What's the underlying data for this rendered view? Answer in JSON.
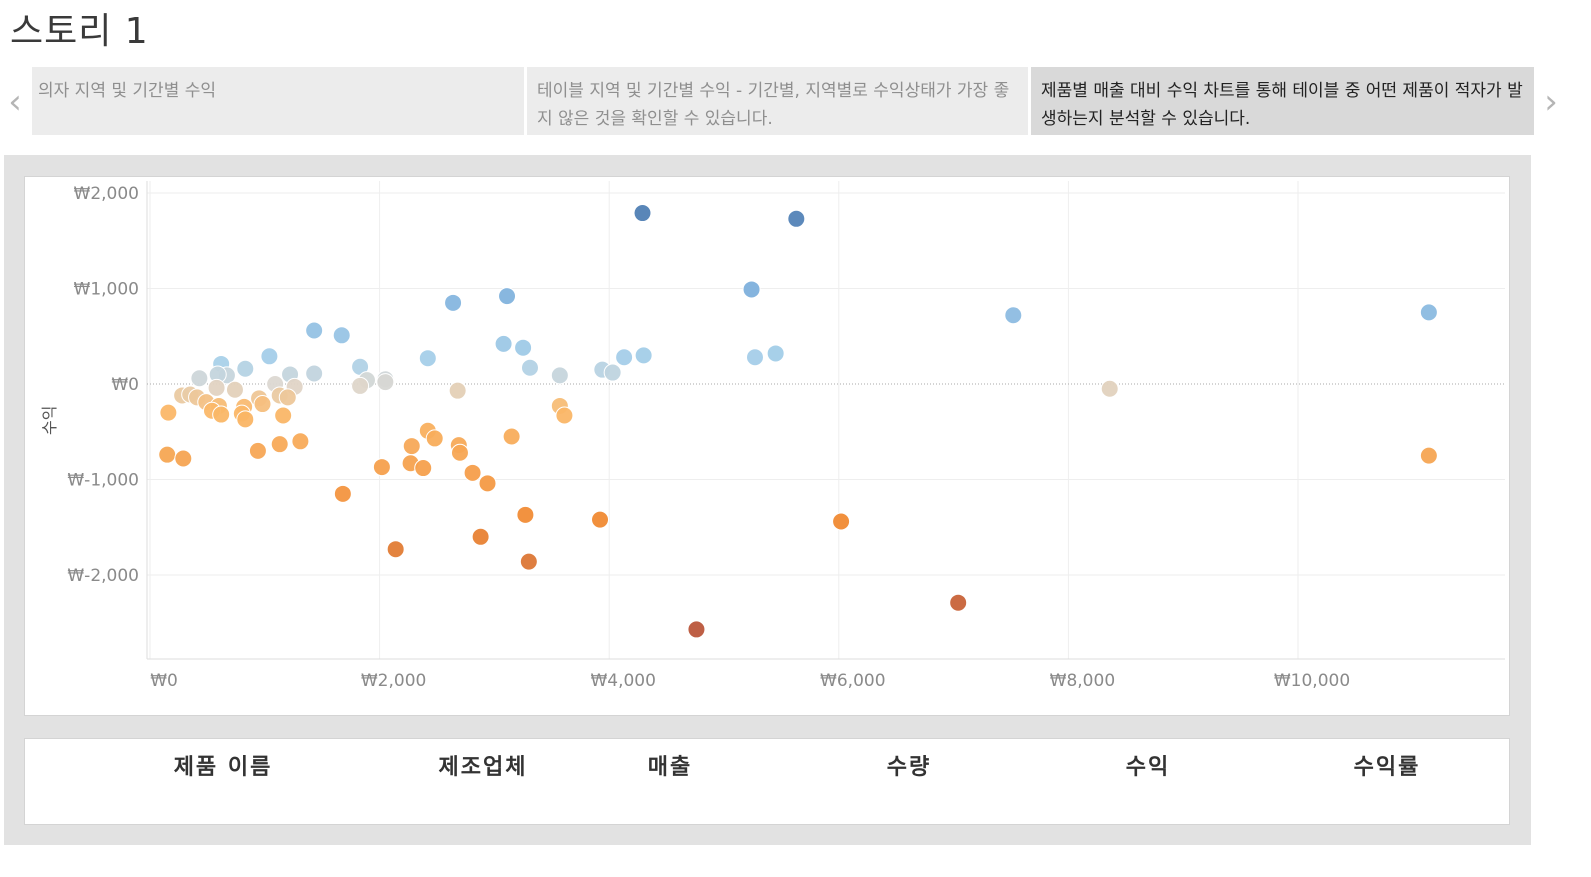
{
  "story": {
    "title": "스토리 1",
    "points": [
      "의자 지역 및 기간별 수익",
      "테이블 지역 및 기간별 수익 - 기간별, 지역별로 수익상태가 가장 좋지 않은 것을 확인할 수 있습니다.",
      "제품별 매출 대비 수익 차트를 통해 테이블 중 어떤 제품이 적자가 발생하는지 분석할 수 있습니다."
    ],
    "prev_icon": "chevron-left-icon",
    "next_icon": "chevron-right-icon"
  },
  "table": {
    "headers": [
      "제품 이름",
      "제조업체",
      "매출",
      "수량",
      "수익",
      "수익률"
    ]
  },
  "chart_data": {
    "type": "scatter",
    "ylabel": "수익",
    "xlabel": "",
    "xlim": [
      0,
      11800
    ],
    "ylim": [
      -2900,
      2100
    ],
    "x_ticks": [
      0,
      2000,
      4000,
      6000,
      8000,
      10000
    ],
    "x_tick_labels": [
      "₩0",
      "₩2,000",
      "₩4,000",
      "₩6,000",
      "₩8,000",
      "₩10,000"
    ],
    "y_ticks": [
      2000,
      1000,
      0,
      -1000,
      -2000
    ],
    "y_tick_labels": [
      "₩2,000",
      "₩1,000",
      "₩0",
      "₩-1,000",
      "₩-2,000"
    ],
    "grid": true,
    "zero_line": true,
    "color_scale": {
      "negative": "#b9553b",
      "neutral": "#dcd8d2",
      "positive": "#4f7fb3",
      "range": [
        -2600,
        1800
      ]
    },
    "points": [
      {
        "x": 4290,
        "y": 1790
      },
      {
        "x": 5630,
        "y": 1730
      },
      {
        "x": 5240,
        "y": 990
      },
      {
        "x": 3110,
        "y": 920
      },
      {
        "x": 2640,
        "y": 850
      },
      {
        "x": 7520,
        "y": 720
      },
      {
        "x": 11140,
        "y": 750
      },
      {
        "x": 1430,
        "y": 560
      },
      {
        "x": 1670,
        "y": 510
      },
      {
        "x": 3080,
        "y": 420
      },
      {
        "x": 3250,
        "y": 380
      },
      {
        "x": 4300,
        "y": 300
      },
      {
        "x": 4130,
        "y": 280
      },
      {
        "x": 5450,
        "y": 320
      },
      {
        "x": 5270,
        "y": 280
      },
      {
        "x": 2420,
        "y": 270
      },
      {
        "x": 1040,
        "y": 290
      },
      {
        "x": 620,
        "y": 210
      },
      {
        "x": 830,
        "y": 160
      },
      {
        "x": 1830,
        "y": 180
      },
      {
        "x": 3310,
        "y": 170
      },
      {
        "x": 3570,
        "y": 90
      },
      {
        "x": 3940,
        "y": 150
      },
      {
        "x": 4030,
        "y": 120
      },
      {
        "x": 1430,
        "y": 110
      },
      {
        "x": 1220,
        "y": 100
      },
      {
        "x": 670,
        "y": 90
      },
      {
        "x": 430,
        "y": 60
      },
      {
        "x": 590,
        "y": 100
      },
      {
        "x": 1890,
        "y": 40
      },
      {
        "x": 2050,
        "y": 50
      },
      {
        "x": 2050,
        "y": 20
      },
      {
        "x": 1090,
        "y": 0
      },
      {
        "x": 1830,
        "y": -20
      },
      {
        "x": 1260,
        "y": -30
      },
      {
        "x": 740,
        "y": -60
      },
      {
        "x": 580,
        "y": -40
      },
      {
        "x": 8360,
        "y": -50
      },
      {
        "x": 2680,
        "y": -70
      },
      {
        "x": 280,
        "y": -120
      },
      {
        "x": 350,
        "y": -110
      },
      {
        "x": 410,
        "y": -140
      },
      {
        "x": 1130,
        "y": -120
      },
      {
        "x": 950,
        "y": -150
      },
      {
        "x": 1200,
        "y": -140
      },
      {
        "x": 490,
        "y": -190
      },
      {
        "x": 600,
        "y": -230
      },
      {
        "x": 820,
        "y": -240
      },
      {
        "x": 980,
        "y": -210
      },
      {
        "x": 160,
        "y": -300
      },
      {
        "x": 540,
        "y": -280
      },
      {
        "x": 620,
        "y": -320
      },
      {
        "x": 800,
        "y": -310
      },
      {
        "x": 830,
        "y": -370
      },
      {
        "x": 1160,
        "y": -330
      },
      {
        "x": 3570,
        "y": -230
      },
      {
        "x": 3610,
        "y": -330
      },
      {
        "x": 2420,
        "y": -490
      },
      {
        "x": 2480,
        "y": -570
      },
      {
        "x": 3150,
        "y": -550
      },
      {
        "x": 1310,
        "y": -600
      },
      {
        "x": 1130,
        "y": -630
      },
      {
        "x": 2280,
        "y": -650
      },
      {
        "x": 2690,
        "y": -640
      },
      {
        "x": 2700,
        "y": -720
      },
      {
        "x": 940,
        "y": -700
      },
      {
        "x": 150,
        "y": -740
      },
      {
        "x": 290,
        "y": -780
      },
      {
        "x": 11140,
        "y": -750
      },
      {
        "x": 2020,
        "y": -870
      },
      {
        "x": 2270,
        "y": -830
      },
      {
        "x": 2380,
        "y": -880
      },
      {
        "x": 2810,
        "y": -930
      },
      {
        "x": 2940,
        "y": -1040
      },
      {
        "x": 1680,
        "y": -1150
      },
      {
        "x": 3270,
        "y": -1370
      },
      {
        "x": 3920,
        "y": -1420
      },
      {
        "x": 6020,
        "y": -1440
      },
      {
        "x": 2140,
        "y": -1730
      },
      {
        "x": 2880,
        "y": -1600
      },
      {
        "x": 3300,
        "y": -1860
      },
      {
        "x": 7040,
        "y": -2290
      },
      {
        "x": 4760,
        "y": -2570
      }
    ]
  }
}
